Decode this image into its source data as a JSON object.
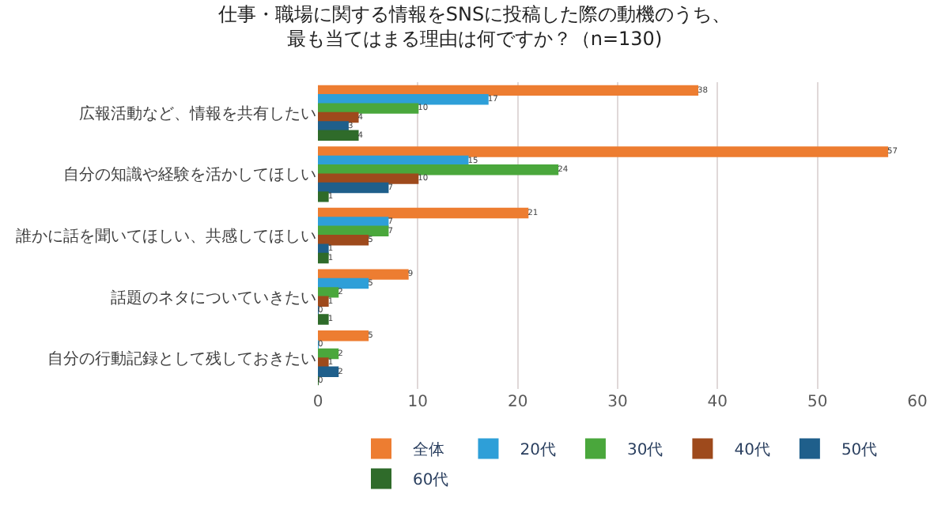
{
  "chart_data": {
    "type": "bar",
    "orientation": "horizontal",
    "title": "仕事・職場に関する情報をSNSに投稿した際の動機のうち、最も当てはまる理由は何ですか？（n=130)",
    "categories": [
      "広報活動など、情報を共有したい",
      "自分の知識や経験を活かしてほしい",
      "誰かに話を聞いてほしい、共感してほしい",
      "話題のネタについていきたい",
      "自分の行動記録として残しておきたい"
    ],
    "series": [
      {
        "name": "全体",
        "color": "#ed7d31",
        "values": [
          38,
          57,
          21,
          9,
          5
        ]
      },
      {
        "name": "20代",
        "color": "#2e9fd8",
        "values": [
          17,
          15,
          7,
          5,
          0
        ]
      },
      {
        "name": "30代",
        "color": "#4aa73c",
        "values": [
          10,
          24,
          7,
          2,
          2
        ]
      },
      {
        "name": "40代",
        "color": "#9e4a1c",
        "values": [
          4,
          10,
          5,
          1,
          1
        ]
      },
      {
        "name": "50代",
        "color": "#1f5f8b",
        "values": [
          3,
          7,
          1,
          0,
          2
        ]
      },
      {
        "name": "60代",
        "color": "#2f6b2a",
        "values": [
          4,
          1,
          1,
          1,
          0
        ]
      }
    ],
    "xlim": [
      0,
      60
    ],
    "xticks": [
      0,
      10,
      20,
      30,
      40,
      50,
      60
    ],
    "grid": "x",
    "legend": "bottom",
    "data_labels": true
  }
}
